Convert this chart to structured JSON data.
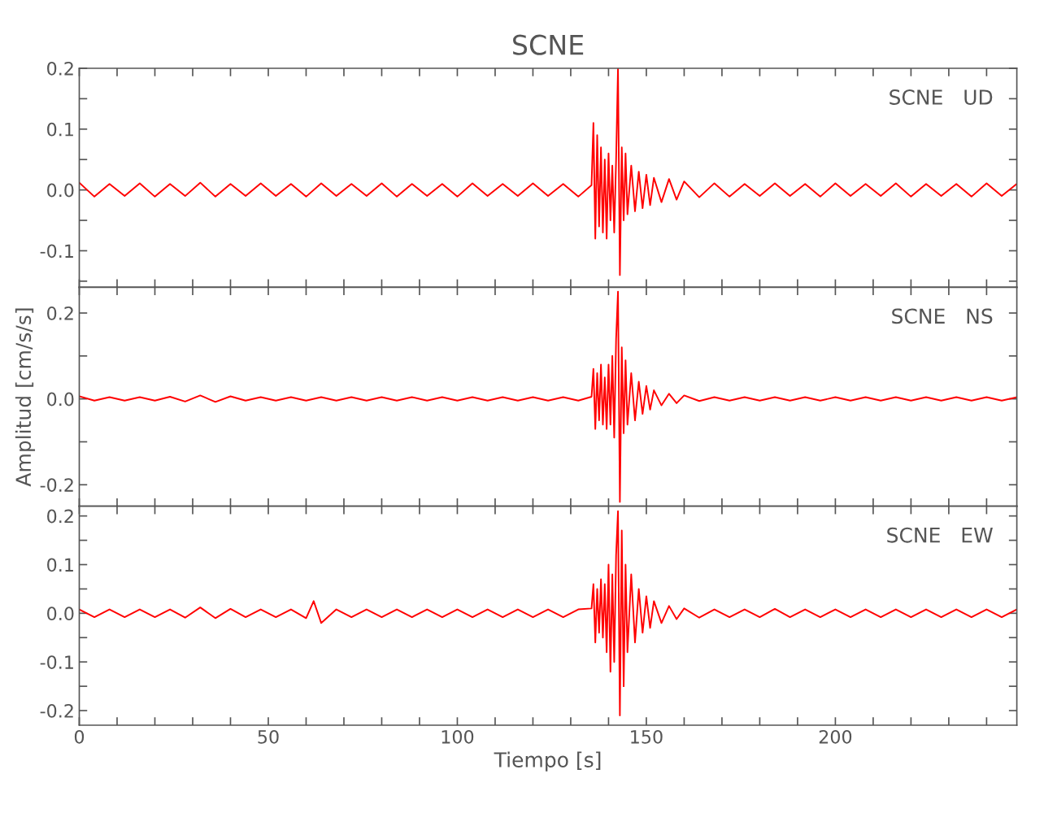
{
  "chart_data": [
    {
      "type": "line",
      "title": "SCNE",
      "annotations": [
        "SCNE   UD"
      ],
      "tick_labels": "y",
      "grid": false,
      "xlim": [
        0,
        248
      ],
      "ylim": [
        -0.16,
        0.2
      ],
      "xticks": [
        {
          "value": 0,
          "label": null
        },
        {
          "value": 10,
          "label": null
        },
        {
          "value": 20,
          "label": null
        },
        {
          "value": 30,
          "label": null
        },
        {
          "value": 40,
          "label": null
        },
        {
          "value": 50,
          "label": null
        },
        {
          "value": 60,
          "label": null
        },
        {
          "value": 70,
          "label": null
        },
        {
          "value": 80,
          "label": null
        },
        {
          "value": 90,
          "label": null
        },
        {
          "value": 100,
          "label": null
        },
        {
          "value": 110,
          "label": null
        },
        {
          "value": 120,
          "label": null
        },
        {
          "value": 130,
          "label": null
        },
        {
          "value": 140,
          "label": null
        },
        {
          "value": 150,
          "label": null
        },
        {
          "value": 160,
          "label": null
        },
        {
          "value": 170,
          "label": null
        },
        {
          "value": 180,
          "label": null
        },
        {
          "value": 190,
          "label": null
        },
        {
          "value": 200,
          "label": null
        },
        {
          "value": 210,
          "label": null
        },
        {
          "value": 220,
          "label": null
        },
        {
          "value": 230,
          "label": null
        },
        {
          "value": 240,
          "label": null
        }
      ],
      "yticks": [
        {
          "value": -0.15,
          "label": null
        },
        {
          "value": -0.1,
          "label": "-0.1"
        },
        {
          "value": -0.05,
          "label": null
        },
        {
          "value": 0,
          "label": "0.0"
        },
        {
          "value": 0.05,
          "label": null
        },
        {
          "value": 0.1,
          "label": "0.1"
        },
        {
          "value": 0.15,
          "label": null
        },
        {
          "value": 0.2,
          "label": "0.2"
        }
      ],
      "x": [
        0,
        4,
        8,
        12,
        16,
        20,
        24,
        28,
        32,
        36,
        40,
        44,
        48,
        52,
        56,
        60,
        64,
        68,
        72,
        76,
        80,
        84,
        88,
        92,
        96,
        100,
        104,
        108,
        112,
        116,
        120,
        124,
        128,
        132,
        135.5,
        136,
        136.5,
        137,
        137.5,
        138,
        138.5,
        139,
        139.5,
        140,
        140.5,
        141,
        141.5,
        142,
        142.5,
        143,
        143.5,
        144,
        144.5,
        145,
        146,
        147,
        148,
        149,
        150,
        151,
        152,
        154,
        156,
        158,
        160,
        164,
        168,
        172,
        176,
        180,
        184,
        188,
        192,
        196,
        200,
        204,
        208,
        212,
        216,
        220,
        224,
        228,
        232,
        236,
        240,
        244,
        248
      ],
      "series": [
        {
          "color": "#ff0000",
          "values": [
            0.012,
            -0.011,
            0.01,
            -0.01,
            0.011,
            -0.011,
            0.01,
            -0.01,
            0.012,
            -0.011,
            0.01,
            -0.01,
            0.011,
            -0.01,
            0.01,
            -0.011,
            0.011,
            -0.01,
            0.01,
            -0.01,
            0.011,
            -0.011,
            0.01,
            -0.01,
            0.01,
            -0.011,
            0.011,
            -0.01,
            0.01,
            -0.01,
            0.011,
            -0.01,
            0.01,
            -0.011,
            0.008,
            0.11,
            -0.08,
            0.09,
            -0.06,
            0.07,
            -0.07,
            0.05,
            -0.08,
            0.06,
            -0.05,
            0.04,
            -0.07,
            0.05,
            0.2,
            -0.14,
            0.07,
            -0.05,
            0.06,
            -0.04,
            0.04,
            -0.035,
            0.03,
            -0.03,
            0.025,
            -0.025,
            0.02,
            -0.02,
            0.018,
            -0.016,
            0.014,
            -0.012,
            0.011,
            -0.011,
            0.01,
            -0.01,
            0.011,
            -0.01,
            0.01,
            -0.011,
            0.011,
            -0.01,
            0.01,
            -0.01,
            0.011,
            -0.011,
            0.01,
            -0.01,
            0.01,
            -0.011,
            0.011,
            -0.01,
            0.01
          ]
        }
      ]
    },
    {
      "type": "line",
      "ylabel": "Amplitud [cm/s/s]",
      "annotations": [
        "SCNE   NS"
      ],
      "tick_labels": "y",
      "grid": false,
      "xlim": [
        0,
        248
      ],
      "ylim": [
        -0.25,
        0.26
      ],
      "xticks": [
        {
          "value": 0,
          "label": null
        },
        {
          "value": 10,
          "label": null
        },
        {
          "value": 20,
          "label": null
        },
        {
          "value": 30,
          "label": null
        },
        {
          "value": 40,
          "label": null
        },
        {
          "value": 50,
          "label": null
        },
        {
          "value": 60,
          "label": null
        },
        {
          "value": 70,
          "label": null
        },
        {
          "value": 80,
          "label": null
        },
        {
          "value": 90,
          "label": null
        },
        {
          "value": 100,
          "label": null
        },
        {
          "value": 110,
          "label": null
        },
        {
          "value": 120,
          "label": null
        },
        {
          "value": 130,
          "label": null
        },
        {
          "value": 140,
          "label": null
        },
        {
          "value": 150,
          "label": null
        },
        {
          "value": 160,
          "label": null
        },
        {
          "value": 170,
          "label": null
        },
        {
          "value": 180,
          "label": null
        },
        {
          "value": 190,
          "label": null
        },
        {
          "value": 200,
          "label": null
        },
        {
          "value": 210,
          "label": null
        },
        {
          "value": 220,
          "label": null
        },
        {
          "value": 230,
          "label": null
        },
        {
          "value": 240,
          "label": null
        }
      ],
      "yticks": [
        {
          "value": -0.2,
          "label": "-0.2"
        },
        {
          "value": -0.1,
          "label": null
        },
        {
          "value": 0,
          "label": "0.0"
        },
        {
          "value": 0.1,
          "label": null
        },
        {
          "value": 0.2,
          "label": "0.2"
        }
      ],
      "x": [
        0,
        4,
        8,
        12,
        16,
        20,
        24,
        28,
        32,
        36,
        40,
        44,
        48,
        52,
        56,
        60,
        64,
        68,
        72,
        76,
        80,
        84,
        88,
        92,
        96,
        100,
        104,
        108,
        112,
        116,
        120,
        124,
        128,
        132,
        135.5,
        136,
        136.5,
        137,
        137.5,
        138,
        138.5,
        139,
        139.5,
        140,
        140.5,
        141,
        141.5,
        142,
        142.5,
        143,
        143.5,
        144,
        144.5,
        145,
        146,
        147,
        148,
        149,
        150,
        151,
        152,
        154,
        156,
        158,
        160,
        164,
        168,
        172,
        176,
        180,
        184,
        188,
        192,
        196,
        200,
        204,
        208,
        212,
        216,
        220,
        224,
        228,
        232,
        236,
        240,
        244,
        248
      ],
      "series": [
        {
          "color": "#ff0000",
          "values": [
            0.006,
            -0.004,
            0.004,
            -0.004,
            0.004,
            -0.004,
            0.005,
            -0.006,
            0.008,
            -0.007,
            0.006,
            -0.004,
            0.004,
            -0.004,
            0.004,
            -0.004,
            0.004,
            -0.004,
            0.004,
            -0.004,
            0.004,
            -0.004,
            0.004,
            -0.004,
            0.004,
            -0.004,
            0.004,
            -0.004,
            0.004,
            -0.004,
            0.004,
            -0.004,
            0.004,
            -0.004,
            0.005,
            0.07,
            -0.07,
            0.06,
            -0.05,
            0.08,
            -0.06,
            0.05,
            -0.07,
            0.08,
            -0.06,
            0.1,
            -0.09,
            0.14,
            0.25,
            -0.24,
            0.12,
            -0.08,
            0.09,
            -0.06,
            0.06,
            -0.05,
            0.04,
            -0.035,
            0.03,
            -0.025,
            0.02,
            -0.015,
            0.012,
            -0.01,
            0.008,
            -0.005,
            0.004,
            -0.004,
            0.004,
            -0.004,
            0.004,
            -0.004,
            0.004,
            -0.004,
            0.004,
            -0.004,
            0.004,
            -0.004,
            0.004,
            -0.004,
            0.004,
            -0.004,
            0.004,
            -0.004,
            0.004,
            -0.004,
            0.004
          ]
        }
      ]
    },
    {
      "type": "line",
      "xlabel": "Tiempo [s]",
      "annotations": [
        "SCNE   EW"
      ],
      "grid": false,
      "xlim": [
        0,
        248
      ],
      "ylim": [
        -0.23,
        0.22
      ],
      "xticks": [
        {
          "value": 0,
          "label": "0"
        },
        {
          "value": 10,
          "label": null
        },
        {
          "value": 20,
          "label": null
        },
        {
          "value": 30,
          "label": null
        },
        {
          "value": 40,
          "label": null
        },
        {
          "value": 50,
          "label": "50"
        },
        {
          "value": 60,
          "label": null
        },
        {
          "value": 70,
          "label": null
        },
        {
          "value": 80,
          "label": null
        },
        {
          "value": 90,
          "label": null
        },
        {
          "value": 100,
          "label": "100"
        },
        {
          "value": 110,
          "label": null
        },
        {
          "value": 120,
          "label": null
        },
        {
          "value": 130,
          "label": null
        },
        {
          "value": 140,
          "label": null
        },
        {
          "value": 150,
          "label": "150"
        },
        {
          "value": 160,
          "label": null
        },
        {
          "value": 170,
          "label": null
        },
        {
          "value": 180,
          "label": null
        },
        {
          "value": 190,
          "label": null
        },
        {
          "value": 200,
          "label": "200"
        },
        {
          "value": 210,
          "label": null
        },
        {
          "value": 220,
          "label": null
        },
        {
          "value": 230,
          "label": null
        },
        {
          "value": 240,
          "label": null
        }
      ],
      "yticks": [
        {
          "value": -0.2,
          "label": "-0.2"
        },
        {
          "value": -0.15,
          "label": null
        },
        {
          "value": -0.1,
          "label": "-0.1"
        },
        {
          "value": -0.05,
          "label": null
        },
        {
          "value": 0,
          "label": "0.0"
        },
        {
          "value": 0.05,
          "label": null
        },
        {
          "value": 0.1,
          "label": "0.1"
        },
        {
          "value": 0.15,
          "label": null
        },
        {
          "value": 0.2,
          "label": "0.2"
        }
      ],
      "x": [
        0,
        4,
        8,
        12,
        16,
        20,
        24,
        28,
        32,
        36,
        40,
        44,
        48,
        52,
        56,
        60,
        62,
        64,
        68,
        72,
        76,
        80,
        84,
        88,
        92,
        96,
        100,
        104,
        108,
        112,
        116,
        120,
        124,
        128,
        132,
        135.5,
        136,
        136.5,
        137,
        137.5,
        138,
        138.5,
        139,
        139.5,
        140,
        140.5,
        141,
        141.5,
        142,
        142.5,
        143,
        143.5,
        144,
        144.5,
        145,
        146,
        147,
        148,
        149,
        150,
        151,
        152,
        154,
        156,
        158,
        160,
        164,
        168,
        172,
        176,
        180,
        184,
        188,
        192,
        196,
        200,
        204,
        208,
        212,
        216,
        220,
        224,
        228,
        232,
        236,
        240,
        244,
        248
      ],
      "series": [
        {
          "color": "#ff0000",
          "values": [
            0.008,
            -0.008,
            0.008,
            -0.008,
            0.008,
            -0.008,
            0.008,
            -0.009,
            0.012,
            -0.01,
            0.009,
            -0.008,
            0.008,
            -0.008,
            0.008,
            -0.01,
            0.025,
            -0.02,
            0.008,
            -0.008,
            0.008,
            -0.008,
            0.008,
            -0.008,
            0.008,
            -0.008,
            0.008,
            -0.008,
            0.008,
            -0.008,
            0.008,
            -0.008,
            0.008,
            -0.008,
            0.008,
            0.01,
            0.06,
            -0.06,
            0.05,
            -0.04,
            0.07,
            -0.05,
            0.06,
            -0.08,
            0.1,
            -0.12,
            0.08,
            -0.1,
            0.12,
            0.21,
            -0.21,
            0.17,
            -0.15,
            0.1,
            -0.08,
            0.08,
            -0.06,
            0.05,
            -0.04,
            0.035,
            -0.03,
            0.025,
            -0.02,
            0.015,
            -0.012,
            0.01,
            -0.009,
            0.008,
            -0.008,
            0.008,
            -0.008,
            0.009,
            -0.008,
            0.008,
            -0.008,
            0.008,
            -0.008,
            0.008,
            -0.008,
            0.008,
            -0.008,
            0.008,
            -0.008,
            0.008,
            -0.008,
            0.008,
            -0.008,
            0.008
          ]
        }
      ]
    }
  ]
}
